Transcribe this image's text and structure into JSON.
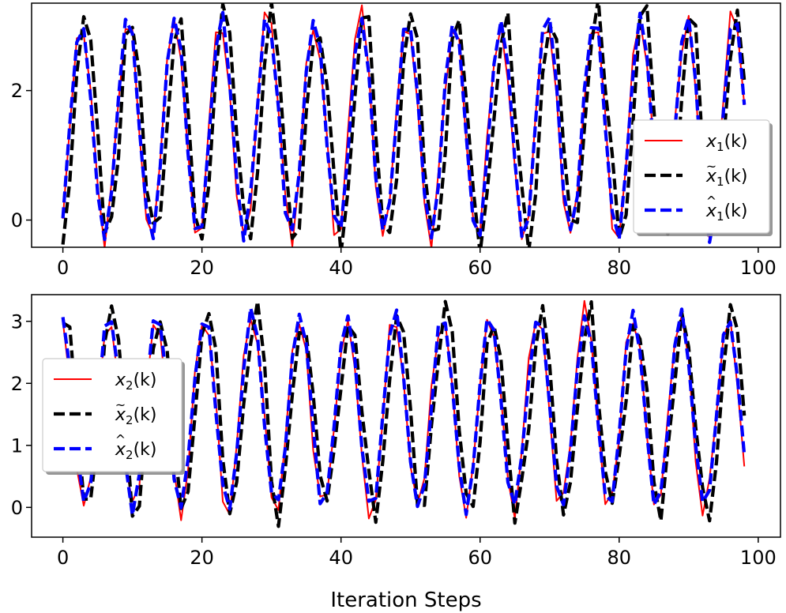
{
  "chart_data": [
    {
      "type": "line",
      "xlabel": "",
      "ylabel": "",
      "xlim": [
        -4.5,
        103.2
      ],
      "ylim": [
        -0.42,
        3.35
      ],
      "xticks": [
        0,
        20,
        40,
        60,
        80,
        100
      ],
      "xtick_labels": [
        "0",
        "20",
        "40",
        "60",
        "80",
        "100"
      ],
      "yticks": [
        0,
        2
      ],
      "ytick_labels": [
        "0",
        "2"
      ],
      "legend_loc": "right",
      "signal": {
        "period": 6.7,
        "phase": 5.4,
        "mean": 1.45,
        "amplitude": 1.7,
        "x_start": 0,
        "x_end": 98,
        "samples": 99
      },
      "series": [
        {
          "name": "x_1(k)",
          "label_base": "x",
          "label_accent": "",
          "label_sub": "1",
          "label_arg": "(k)",
          "style": "solid",
          "color": "#ff0000",
          "lag": 0,
          "jitter": 0.22,
          "seed": 11
        },
        {
          "name": "x̃_1(k)",
          "label_base": "x",
          "label_accent": "~",
          "label_sub": "1",
          "label_arg": "(k)",
          "style": "dashed",
          "color": "#000000",
          "lag": 0.55,
          "jitter": 0.3,
          "seed": 23
        },
        {
          "name": "x̂_1(k)",
          "label_base": "x",
          "label_accent": "^",
          "label_sub": "1",
          "label_arg": "(k)",
          "style": "dashed",
          "color": "#0000ff",
          "lag": 0.05,
          "jitter": 0.12,
          "seed": 37
        }
      ]
    },
    {
      "type": "line",
      "xlabel": "Iteration Steps",
      "ylabel": "",
      "xlim": [
        -4.5,
        103.2
      ],
      "ylim": [
        -0.48,
        3.43
      ],
      "xticks": [
        0,
        20,
        40,
        60,
        80,
        100
      ],
      "xtick_labels": [
        "0",
        "20",
        "40",
        "60",
        "80",
        "100"
      ],
      "yticks": [
        0,
        1,
        2,
        3
      ],
      "ytick_labels": [
        "0",
        "1",
        "2",
        "3"
      ],
      "legend_loc": "left",
      "signal": {
        "period": 6.85,
        "phase": 1.8,
        "mean": 1.55,
        "amplitude": 1.6,
        "x_start": 0,
        "x_end": 98,
        "samples": 99
      },
      "series": [
        {
          "name": "x_2(k)",
          "label_base": "x",
          "label_accent": "",
          "label_sub": "2",
          "label_arg": "(k)",
          "style": "solid",
          "color": "#ff0000",
          "lag": 0,
          "jitter": 0.22,
          "seed": 53
        },
        {
          "name": "x̃_2(k)",
          "label_base": "x",
          "label_accent": "~",
          "label_sub": "2",
          "label_arg": "(k)",
          "style": "dashed",
          "color": "#000000",
          "lag": 0.5,
          "jitter": 0.28,
          "seed": 71
        },
        {
          "name": "x̂_2(k)",
          "label_base": "x",
          "label_accent": "^",
          "label_sub": "2",
          "label_arg": "(k)",
          "style": "dashed",
          "color": "#0000ff",
          "lag": 0.05,
          "jitter": 0.12,
          "seed": 89
        }
      ]
    }
  ]
}
